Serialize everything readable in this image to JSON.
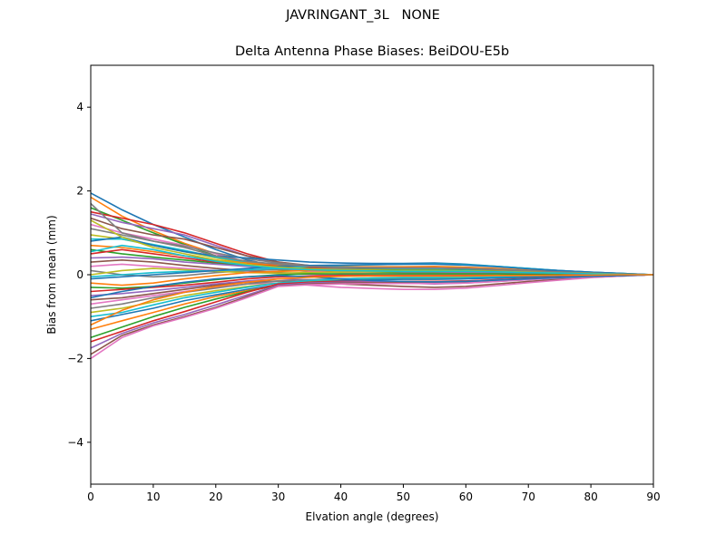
{
  "figure": {
    "suptitle": "JAVRINGANT_3L   NONE"
  },
  "chart_data": {
    "type": "line",
    "title": "Delta Antenna Phase Biases: BeiDOU-E5b",
    "xlabel": "Elvation angle (degrees)",
    "ylabel": "Bias from mean (mm)",
    "xlim": [
      0,
      90
    ],
    "ylim": [
      -5,
      5
    ],
    "xticks": [
      0,
      10,
      20,
      30,
      40,
      50,
      60,
      70,
      80,
      90
    ],
    "yticks": [
      -4,
      -2,
      0,
      2,
      4
    ],
    "ytick_labels": [
      "−4",
      "−2",
      "0",
      "2",
      "4"
    ],
    "grid": false,
    "legend": "none",
    "x": [
      0,
      5,
      10,
      15,
      20,
      25,
      30,
      35,
      40,
      45,
      50,
      55,
      60,
      65,
      70,
      75,
      80,
      85,
      90
    ],
    "colors": [
      "#1f77b4",
      "#ff7f0e",
      "#2ca02c",
      "#d62728",
      "#9467bd",
      "#8c564b",
      "#e377c2",
      "#7f7f7f",
      "#bcbd22",
      "#17becf"
    ],
    "series": [
      {
        "values": [
          1.95,
          1.55,
          1.2,
          0.9,
          0.6,
          0.35,
          0.2,
          0.15,
          0.12,
          0.1,
          0.08,
          0.08,
          0.07,
          0.06,
          0.05,
          0.04,
          0.03,
          0.01,
          0
        ]
      },
      {
        "values": [
          1.85,
          1.4,
          1.05,
          0.75,
          0.5,
          0.3,
          0.18,
          0.15,
          0.14,
          0.13,
          0.12,
          0.11,
          0.1,
          0.08,
          0.06,
          0.05,
          0.03,
          0.01,
          0
        ]
      },
      {
        "values": [
          1.6,
          1.3,
          1.0,
          0.72,
          0.45,
          0.25,
          0.12,
          0.08,
          0.06,
          0.05,
          0.05,
          0.05,
          0.04,
          0.04,
          0.03,
          0.02,
          0.02,
          0.01,
          0
        ]
      },
      {
        "values": [
          1.5,
          1.35,
          1.2,
          1.0,
          0.75,
          0.5,
          0.3,
          0.2,
          0.15,
          0.12,
          0.1,
          0.1,
          0.09,
          0.08,
          0.06,
          0.05,
          0.03,
          0.01,
          0
        ]
      },
      {
        "values": [
          1.45,
          1.25,
          1.1,
          0.95,
          0.7,
          0.45,
          0.25,
          0.15,
          0.1,
          0.08,
          0.07,
          0.07,
          0.06,
          0.05,
          0.04,
          0.03,
          0.02,
          0.01,
          0
        ]
      },
      {
        "values": [
          1.35,
          1.1,
          0.95,
          0.85,
          0.65,
          0.45,
          0.3,
          0.22,
          0.18,
          0.15,
          0.12,
          0.11,
          0.1,
          0.08,
          0.06,
          0.05,
          0.03,
          0.01,
          0
        ]
      },
      {
        "values": [
          1.2,
          1.0,
          0.85,
          0.7,
          0.5,
          0.3,
          0.15,
          0.08,
          0.05,
          0.03,
          0.02,
          0.02,
          0.02,
          0.02,
          0.01,
          0.01,
          0.01,
          0,
          0
        ]
      },
      {
        "values": [
          1.1,
          0.95,
          0.8,
          0.68,
          0.52,
          0.38,
          0.28,
          0.22,
          0.19,
          0.17,
          0.16,
          0.15,
          0.14,
          0.12,
          0.09,
          0.07,
          0.04,
          0.02,
          0
        ]
      },
      {
        "values": [
          0.95,
          0.85,
          0.7,
          0.55,
          0.4,
          0.28,
          0.2,
          0.16,
          0.14,
          0.13,
          0.12,
          0.12,
          0.11,
          0.1,
          0.08,
          0.06,
          0.04,
          0.02,
          0
        ]
      },
      {
        "values": [
          0.85,
          0.85,
          0.72,
          0.58,
          0.42,
          0.3,
          0.22,
          0.18,
          0.16,
          0.15,
          0.14,
          0.13,
          0.12,
          0.1,
          0.08,
          0.06,
          0.04,
          0.02,
          0
        ]
      },
      {
        "values": [
          0.8,
          0.9,
          0.7,
          0.55,
          0.45,
          0.4,
          0.35,
          0.3,
          0.28,
          0.27,
          0.27,
          0.28,
          0.25,
          0.2,
          0.15,
          0.1,
          0.06,
          0.03,
          0
        ]
      },
      {
        "values": [
          0.7,
          0.65,
          0.55,
          0.45,
          0.35,
          0.28,
          0.22,
          0.2,
          0.19,
          0.19,
          0.19,
          0.2,
          0.18,
          0.15,
          0.11,
          0.08,
          0.05,
          0.02,
          0
        ]
      },
      {
        "values": [
          0.6,
          0.5,
          0.42,
          0.35,
          0.28,
          0.22,
          0.18,
          0.15,
          0.13,
          0.12,
          0.11,
          0.11,
          0.1,
          0.09,
          0.07,
          0.05,
          0.03,
          0.01,
          0
        ]
      },
      {
        "values": [
          0.5,
          0.6,
          0.5,
          0.4,
          0.3,
          0.25,
          0.2,
          0.18,
          0.17,
          0.16,
          0.16,
          0.16,
          0.15,
          0.12,
          0.09,
          0.07,
          0.04,
          0.02,
          0
        ]
      },
      {
        "values": [
          0.4,
          0.42,
          0.38,
          0.3,
          0.25,
          0.2,
          0.15,
          0.12,
          0.1,
          0.08,
          0.07,
          0.07,
          0.06,
          0.05,
          0.04,
          0.03,
          0.02,
          0.01,
          0
        ]
      },
      {
        "values": [
          0.3,
          0.35,
          0.3,
          0.22,
          0.15,
          0.1,
          0.05,
          0.02,
          0.0,
          -0.02,
          -0.03,
          -0.03,
          -0.03,
          -0.02,
          -0.02,
          -0.01,
          -0.01,
          0,
          0
        ]
      },
      {
        "values": [
          0.2,
          0.25,
          0.2,
          0.15,
          0.1,
          0.06,
          0.03,
          0.01,
          0.0,
          -0.01,
          -0.02,
          -0.02,
          -0.02,
          -0.02,
          -0.01,
          -0.01,
          0,
          0,
          0
        ]
      },
      {
        "values": [
          0.1,
          0.0,
          -0.05,
          -0.02,
          0.05,
          0.1,
          0.12,
          0.14,
          0.15,
          0.16,
          0.16,
          0.16,
          0.15,
          0.13,
          0.1,
          0.07,
          0.04,
          0.02,
          0
        ]
      },
      {
        "values": [
          0.0,
          0.1,
          0.15,
          0.12,
          0.08,
          0.05,
          0.04,
          0.05,
          0.06,
          0.07,
          0.08,
          0.08,
          0.08,
          0.07,
          0.05,
          0.04,
          0.02,
          0.01,
          0
        ]
      },
      {
        "values": [
          -0.05,
          0.0,
          0.05,
          0.08,
          0.1,
          0.12,
          0.15,
          0.2,
          0.22,
          0.24,
          0.25,
          0.26,
          0.24,
          0.2,
          0.15,
          0.1,
          0.06,
          0.03,
          0
        ]
      },
      {
        "values": [
          -0.1,
          -0.05,
          0.0,
          0.05,
          0.1,
          0.15,
          0.2,
          0.22,
          0.23,
          0.24,
          0.25,
          0.25,
          0.23,
          0.19,
          0.14,
          0.1,
          0.06,
          0.03,
          0
        ]
      },
      {
        "values": [
          -0.2,
          -0.25,
          -0.2,
          -0.1,
          -0.02,
          0.05,
          0.08,
          0.1,
          0.1,
          0.1,
          0.1,
          0.1,
          0.09,
          0.08,
          0.06,
          0.04,
          0.03,
          0.01,
          0
        ]
      },
      {
        "values": [
          -0.3,
          -0.32,
          -0.28,
          -0.2,
          -0.12,
          -0.05,
          0.0,
          0.02,
          0.02,
          0.02,
          0.02,
          0.02,
          0.02,
          0.02,
          0.01,
          0.01,
          0,
          0,
          0
        ]
      },
      {
        "values": [
          -0.4,
          -0.35,
          -0.3,
          -0.25,
          -0.18,
          -0.1,
          -0.05,
          -0.03,
          -0.02,
          -0.02,
          -0.02,
          -0.02,
          -0.02,
          -0.02,
          -0.01,
          -0.01,
          0,
          0,
          0
        ]
      },
      {
        "values": [
          -0.5,
          -0.45,
          -0.38,
          -0.3,
          -0.22,
          -0.15,
          -0.1,
          -0.12,
          -0.15,
          -0.18,
          -0.2,
          -0.22,
          -0.2,
          -0.16,
          -0.12,
          -0.08,
          -0.05,
          -0.02,
          0
        ]
      },
      {
        "values": [
          -0.6,
          -0.55,
          -0.45,
          -0.35,
          -0.25,
          -0.18,
          -0.15,
          -0.18,
          -0.22,
          -0.25,
          -0.28,
          -0.3,
          -0.28,
          -0.22,
          -0.16,
          -0.11,
          -0.06,
          -0.03,
          0
        ]
      },
      {
        "values": [
          -0.7,
          -0.6,
          -0.5,
          -0.4,
          -0.3,
          -0.22,
          -0.2,
          -0.25,
          -0.3,
          -0.33,
          -0.35,
          -0.35,
          -0.32,
          -0.26,
          -0.19,
          -0.13,
          -0.07,
          -0.03,
          0
        ]
      },
      {
        "values": [
          -0.8,
          -0.7,
          -0.55,
          -0.42,
          -0.32,
          -0.22,
          -0.15,
          -0.12,
          -0.1,
          -0.08,
          -0.07,
          -0.07,
          -0.06,
          -0.05,
          -0.04,
          -0.03,
          -0.02,
          -0.01,
          0
        ]
      },
      {
        "values": [
          -0.9,
          -0.8,
          -0.65,
          -0.5,
          -0.38,
          -0.28,
          -0.2,
          -0.15,
          -0.12,
          -0.1,
          -0.09,
          -0.09,
          -0.08,
          -0.07,
          -0.05,
          -0.04,
          -0.02,
          -0.01,
          0
        ]
      },
      {
        "values": [
          -1.0,
          -0.9,
          -0.72,
          -0.55,
          -0.42,
          -0.3,
          -0.2,
          -0.14,
          -0.1,
          -0.08,
          -0.07,
          -0.07,
          -0.06,
          -0.05,
          -0.04,
          -0.03,
          -0.02,
          -0.01,
          0
        ]
      },
      {
        "values": [
          -1.1,
          -0.95,
          -0.8,
          -0.62,
          -0.48,
          -0.35,
          -0.24,
          -0.18,
          -0.14,
          -0.12,
          -0.11,
          -0.11,
          -0.1,
          -0.08,
          -0.06,
          -0.04,
          -0.03,
          -0.01,
          0
        ]
      },
      {
        "values": [
          -1.3,
          -1.1,
          -0.9,
          -0.7,
          -0.52,
          -0.38,
          -0.26,
          -0.2,
          -0.18,
          -0.17,
          -0.16,
          -0.16,
          -0.15,
          -0.12,
          -0.09,
          -0.06,
          -0.04,
          -0.02,
          0
        ]
      },
      {
        "values": [
          -1.5,
          -1.25,
          -1.0,
          -0.78,
          -0.58,
          -0.4,
          -0.25,
          -0.2,
          -0.18,
          -0.18,
          -0.18,
          -0.18,
          -0.17,
          -0.14,
          -0.1,
          -0.07,
          -0.04,
          -0.02,
          0
        ]
      },
      {
        "values": [
          -1.6,
          -1.35,
          -1.1,
          -0.88,
          -0.65,
          -0.42,
          -0.22,
          -0.18,
          -0.16,
          -0.16,
          -0.16,
          -0.16,
          -0.15,
          -0.12,
          -0.09,
          -0.06,
          -0.04,
          -0.02,
          0
        ]
      },
      {
        "values": [
          -1.75,
          -1.4,
          -1.15,
          -0.95,
          -0.72,
          -0.48,
          -0.25,
          -0.2,
          -0.18,
          -0.17,
          -0.17,
          -0.17,
          -0.16,
          -0.13,
          -0.1,
          -0.07,
          -0.04,
          -0.02,
          0
        ]
      },
      {
        "values": [
          -1.9,
          -1.45,
          -1.2,
          -1.0,
          -0.78,
          -0.52,
          -0.27,
          -0.22,
          -0.2,
          -0.19,
          -0.19,
          -0.19,
          -0.18,
          -0.15,
          -0.11,
          -0.08,
          -0.05,
          -0.02,
          0
        ]
      },
      {
        "values": [
          -2.0,
          -1.5,
          -1.22,
          -1.02,
          -0.8,
          -0.55,
          -0.28,
          -0.24,
          -0.22,
          -0.21,
          -0.21,
          -0.21,
          -0.2,
          -0.16,
          -0.12,
          -0.08,
          -0.05,
          -0.02,
          0
        ]
      },
      {
        "values": [
          1.7,
          1.0,
          0.8,
          0.65,
          0.45,
          0.32,
          0.25,
          0.2,
          0.18,
          0.17,
          0.16,
          0.16,
          0.15,
          0.12,
          0.09,
          0.07,
          0.04,
          0.02,
          0
        ]
      },
      {
        "values": [
          1.3,
          0.9,
          0.65,
          0.5,
          0.35,
          0.25,
          0.18,
          0.14,
          0.12,
          0.11,
          0.1,
          0.1,
          0.09,
          0.08,
          0.06,
          0.04,
          0.03,
          0.01,
          0
        ]
      },
      {
        "values": [
          0.55,
          0.7,
          0.6,
          0.45,
          0.32,
          0.22,
          0.15,
          0.12,
          0.1,
          0.09,
          0.08,
          0.08,
          0.08,
          0.07,
          0.05,
          0.04,
          0.02,
          0.01,
          0
        ]
      },
      {
        "values": [
          -0.55,
          -0.4,
          -0.28,
          -0.18,
          -0.1,
          -0.05,
          -0.02,
          -0.05,
          -0.1,
          -0.14,
          -0.16,
          -0.17,
          -0.16,
          -0.13,
          -0.1,
          -0.07,
          -0.04,
          -0.02,
          0
        ]
      },
      {
        "values": [
          -1.2,
          -0.85,
          -0.6,
          -0.42,
          -0.28,
          -0.18,
          -0.1,
          -0.06,
          -0.04,
          -0.03,
          -0.03,
          -0.03,
          -0.03,
          -0.02,
          -0.02,
          -0.01,
          -0.01,
          0,
          0
        ]
      }
    ]
  }
}
